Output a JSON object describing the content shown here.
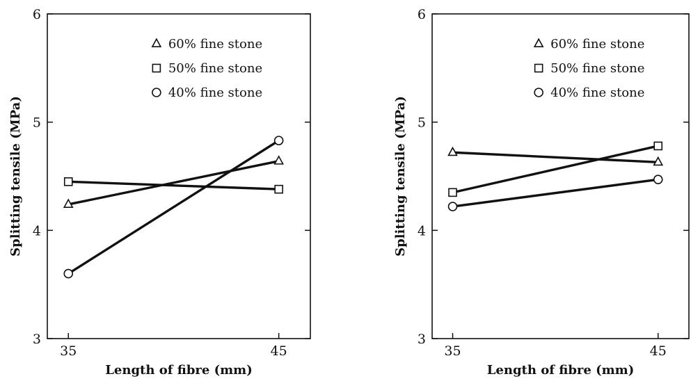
{
  "chart_data": [
    {
      "type": "line",
      "xlabel": "Length of fibre (mm)",
      "ylabel": "Splitting tensile (MPa)",
      "xlim": [
        34,
        46.5
      ],
      "ylim": [
        3,
        6
      ],
      "xticks": [
        35,
        45
      ],
      "yticks": [
        3,
        4,
        5,
        6
      ],
      "grid": false,
      "legend_position": "top-right",
      "series": [
        {
          "name": "60% fine stone",
          "marker": "triangle",
          "x": [
            35,
            45
          ],
          "y": [
            4.24,
            4.64
          ]
        },
        {
          "name": "50% fine stone",
          "marker": "square",
          "x": [
            35,
            45
          ],
          "y": [
            4.45,
            4.38
          ]
        },
        {
          "name": "40% fine stone",
          "marker": "circle",
          "x": [
            35,
            45
          ],
          "y": [
            3.6,
            4.83
          ]
        }
      ]
    },
    {
      "type": "line",
      "xlabel": "Length of fibre (mm)",
      "ylabel": "Splitting tensile (MPa)",
      "xlim": [
        34,
        46.5
      ],
      "ylim": [
        3,
        6
      ],
      "xticks": [
        35,
        45
      ],
      "yticks": [
        3,
        4,
        5,
        6
      ],
      "grid": false,
      "legend_position": "top-right",
      "series": [
        {
          "name": "60% fine stone",
          "marker": "triangle",
          "x": [
            35,
            45
          ],
          "y": [
            4.72,
            4.63
          ]
        },
        {
          "name": "50% fine stone",
          "marker": "square",
          "x": [
            35,
            45
          ],
          "y": [
            4.35,
            4.78
          ]
        },
        {
          "name": "40% fine stone",
          "marker": "circle",
          "x": [
            35,
            45
          ],
          "y": [
            4.22,
            4.47
          ]
        }
      ]
    }
  ]
}
